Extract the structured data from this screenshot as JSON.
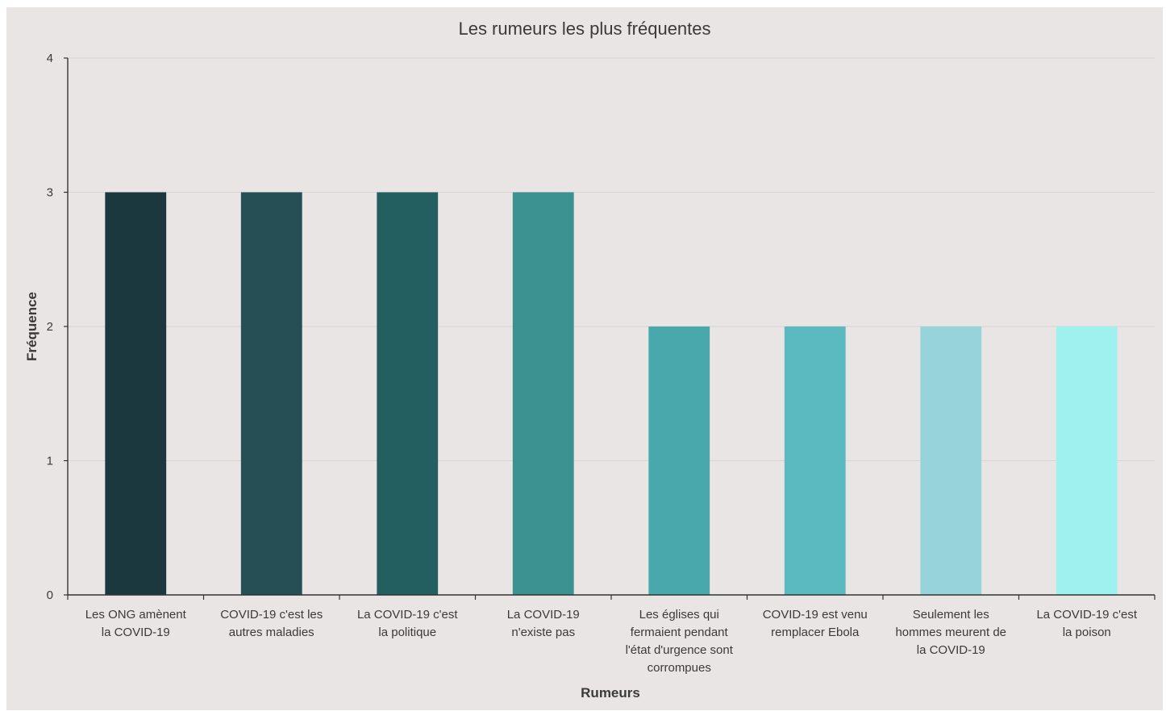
{
  "chart_data": {
    "type": "bar",
    "title": "Les rumeurs les plus fréquentes",
    "xlabel": "Rumeurs",
    "ylabel": "Fréquence",
    "ylim": [
      0,
      4
    ],
    "yticks": [
      "0",
      "1",
      "2",
      "3",
      "4"
    ],
    "grid": true,
    "legend": "none",
    "categories": [
      "Les ONG amènent la COVID-19",
      "COVID-19 c'est les autres maladies",
      "La COVID-19 c'est la politique",
      "La COVID-19 n'existe pas",
      "Les églises qui fermaient pendant l'état d'urgence sont corrompues",
      "COVID-19 est venu remplacer Ebola",
      "Seulement les hommes meurent de la COVID-19",
      "La COVID-19 c'est la poison"
    ],
    "category_lines": [
      [
        "Les ONG amènent",
        "la COVID-19"
      ],
      [
        "COVID-19 c'est les",
        "autres maladies"
      ],
      [
        "La COVID-19 c'est",
        "la politique"
      ],
      [
        "La COVID-19",
        "n'existe pas"
      ],
      [
        "Les églises qui",
        "fermaient pendant",
        "l'état d'urgence sont",
        "corrompues"
      ],
      [
        "COVID-19 est venu",
        "remplacer Ebola"
      ],
      [
        "Seulement les",
        "hommes meurent de",
        "la COVID-19"
      ],
      [
        "La COVID-19 c'est",
        "la poison"
      ]
    ],
    "values": [
      3,
      3,
      3,
      3,
      2,
      2,
      2,
      2
    ],
    "colors": [
      "#1b383e",
      "#254e55",
      "#235f60",
      "#3c9291",
      "#49a8ab",
      "#5bbac0",
      "#96d3da",
      "#9ef1ef"
    ]
  }
}
